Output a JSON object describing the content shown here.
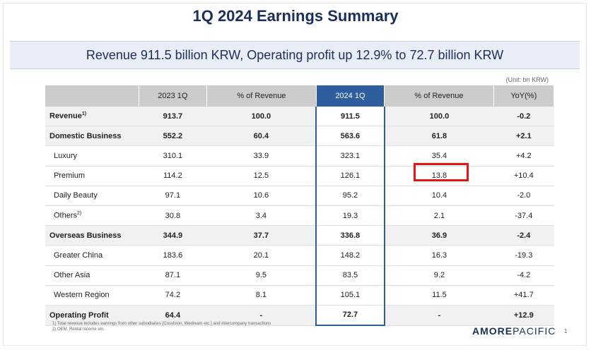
{
  "title": "1Q 2024 Earnings Summary",
  "banner": "Revenue 911.5 billion KRW, Operating profit up 12.9% to 72.7 billion KRW",
  "unit": "(Unit: bn KRW)",
  "headers": [
    "",
    "2023 1Q",
    "% of Revenue",
    "2024 1Q",
    "% of Revenue",
    "YoY(%)"
  ],
  "rows": [
    {
      "label": "Revenue",
      "sup": "1)",
      "c1": "913.7",
      "c2": "100.0",
      "c3": "911.5",
      "c4": "100.0",
      "c5": "-0.2"
    },
    {
      "label": "Domestic Business",
      "sup": "",
      "c1": "552.2",
      "c2": "60.4",
      "c3": "563.6",
      "c4": "61.8",
      "c5": "+2.1"
    },
    {
      "label": "Luxury",
      "sup": "",
      "c1": "310.1",
      "c2": "33.9",
      "c3": "323.1",
      "c4": "35.4",
      "c5": "+4.2"
    },
    {
      "label": "Premium",
      "sup": "",
      "c1": "114.2",
      "c2": "12.5",
      "c3": "126.1",
      "c4": "13.8",
      "c5": "+10.4"
    },
    {
      "label": "Daily Beauty",
      "sup": "",
      "c1": "97.1",
      "c2": "10.6",
      "c3": "95.2",
      "c4": "10.4",
      "c5": "-2.0"
    },
    {
      "label": "Others",
      "sup": "2)",
      "c1": "30.8",
      "c2": "3.4",
      "c3": "19.3",
      "c4": "2.1",
      "c5": "-37.4"
    },
    {
      "label": "Overseas Business",
      "sup": "",
      "c1": "344.9",
      "c2": "37.7",
      "c3": "336.8",
      "c4": "36.9",
      "c5": "-2.4"
    },
    {
      "label": "Greater China",
      "sup": "",
      "c1": "183.6",
      "c2": "20.1",
      "c3": "148.2",
      "c4": "16.3",
      "c5": "-19.3"
    },
    {
      "label": "Other Asia",
      "sup": "",
      "c1": "87.1",
      "c2": "9.5",
      "c3": "83.5",
      "c4": "9.2",
      "c5": "-4.2"
    },
    {
      "label": "Western Region",
      "sup": "",
      "c1": "74.2",
      "c2": "8.1",
      "c3": "105.1",
      "c4": "11.5",
      "c5": "+41.7"
    },
    {
      "label": "Operating Profit",
      "sup": "",
      "c1": "64.4",
      "c2": "-",
      "c3": "72.7",
      "c4": "-",
      "c5": "+12.9"
    }
  ],
  "notes": {
    "n1": "1) Total revenue includes earnings from other subsidiaries (Cosvision, Wedream etc.) and intercompany transactions",
    "n2": "2) OEM, Rental Income etc."
  },
  "logo": {
    "part1": "AMORE",
    "part2": "PACIFIC"
  },
  "page_number": "1",
  "colors": {
    "highlight_header": "#2f5e9f",
    "red_box": "#ee1111",
    "title": "#1a2f5a"
  }
}
